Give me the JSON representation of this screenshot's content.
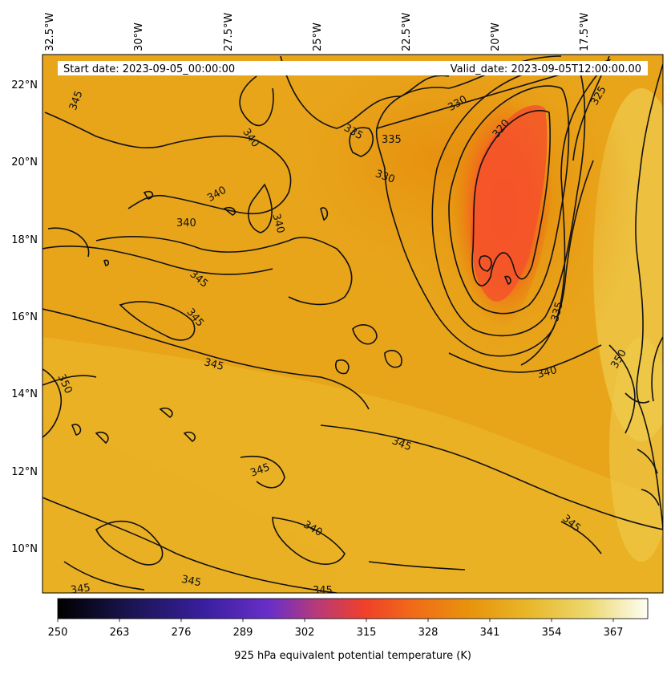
{
  "header": {
    "start_date": "Start date: 2023-09-05_00:00:00",
    "valid_date": "Valid_date: 2023-09-05T12:00:00.00"
  },
  "map": {
    "lon_labels": [
      "32.5°W",
      "30°W",
      "27.5°W",
      "25°W",
      "22.5°W",
      "20°W",
      "17.5°W"
    ],
    "lat_labels": [
      "22°N",
      "20°N",
      "18°N",
      "16°N",
      "14°N",
      "12°N",
      "10°N"
    ],
    "contour_labels": [
      "345",
      "340",
      "335",
      "335",
      "330",
      "330",
      "325",
      "320",
      "340",
      "340",
      "340",
      "345",
      "345",
      "345",
      "335",
      "340",
      "350",
      "350",
      "345",
      "345",
      "340",
      "345",
      "345",
      "345",
      "345"
    ]
  },
  "colorbar": {
    "ticks": [
      "250",
      "263",
      "276",
      "289",
      "302",
      "315",
      "328",
      "341",
      "354",
      "367"
    ],
    "label": "925 hPa equivalent potential temperature (K)"
  },
  "colors": {
    "field_base": "#e8a51a",
    "field_warm": "#f4c534",
    "field_orange": "#e88a0c",
    "field_red": "#f45524",
    "contour": "#111111"
  }
}
